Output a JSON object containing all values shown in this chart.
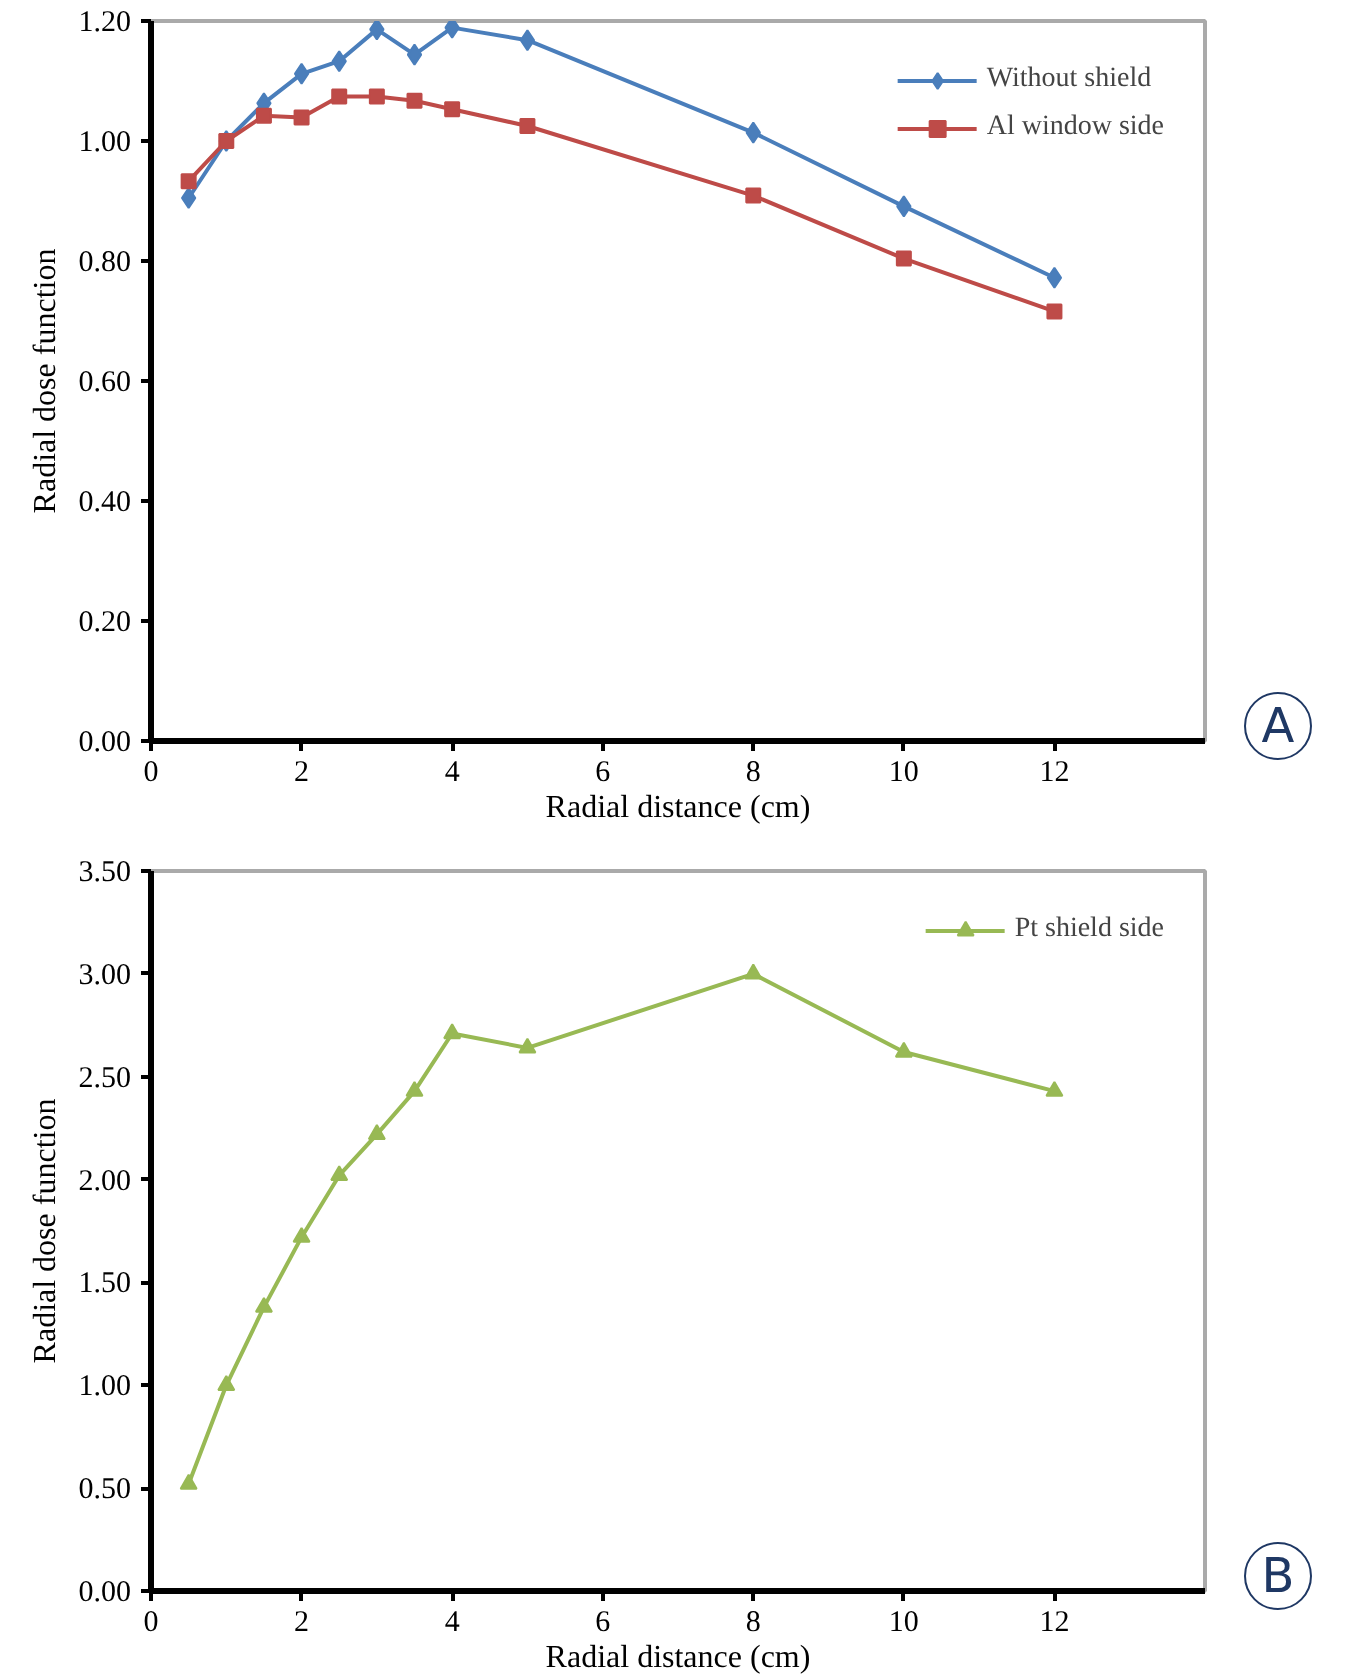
{
  "chart_data": [
    {
      "type": "line",
      "xlabel": "Radial distance (cm)",
      "ylabel": "Radial dose function",
      "annotations": [
        "A"
      ],
      "xlim": [
        0,
        14
      ],
      "xticks": [
        0,
        2,
        4,
        6,
        8,
        10,
        12
      ],
      "ylim": [
        0,
        1.2
      ],
      "yticks": [
        {
          "value": 0,
          "label": "0.00"
        },
        {
          "value": 0.2,
          "label": "0.20"
        },
        {
          "value": 0.4,
          "label": "0.40"
        },
        {
          "value": 0.6,
          "label": "0.60"
        },
        {
          "value": 0.8,
          "label": "0.80"
        },
        {
          "value": 1.0,
          "label": "1.00"
        },
        {
          "value": 1.2,
          "label": "1.20"
        }
      ],
      "x": [
        0.5,
        1,
        1.5,
        2,
        2.5,
        3,
        3.5,
        4,
        5,
        8,
        10,
        12
      ],
      "grid": false,
      "legend": "top right",
      "line_style": "solid",
      "series": [
        {
          "name": "Without shield",
          "color": "#4a7ebb",
          "marker": "diamond",
          "values": [
            0.905,
            1.0,
            1.063,
            1.112,
            1.133,
            1.186,
            1.144,
            1.189,
            1.168,
            1.014,
            0.891,
            0.772
          ]
        },
        {
          "name": "Al window side",
          "color": "#be4b48",
          "marker": "square",
          "values": [
            0.933,
            1.0,
            1.042,
            1.039,
            1.074,
            1.074,
            1.067,
            1.053,
            1.025,
            0.909,
            0.804,
            0.716
          ]
        }
      ]
    },
    {
      "type": "line",
      "xlabel": "Radial distance (cm)",
      "ylabel": "Radial dose function",
      "annotations": [
        "B"
      ],
      "xlim": [
        0,
        14
      ],
      "xticks": [
        0,
        2,
        4,
        6,
        8,
        10,
        12
      ],
      "ylim": [
        0,
        3.5
      ],
      "yticks": [
        {
          "value": 0,
          "label": "0.00"
        },
        {
          "value": 0.5,
          "label": "0.50"
        },
        {
          "value": 1.0,
          "label": "1.00"
        },
        {
          "value": 1.5,
          "label": "1.50"
        },
        {
          "value": 2.0,
          "label": "2.00"
        },
        {
          "value": 2.5,
          "label": "2.50"
        },
        {
          "value": 3.0,
          "label": "3.00"
        },
        {
          "value": 3.5,
          "label": "3.50"
        }
      ],
      "x": [
        0.5,
        1,
        1.5,
        2,
        2.5,
        3,
        3.5,
        4,
        5,
        8,
        10,
        12
      ],
      "grid": false,
      "legend": "top right",
      "line_style": "solid",
      "series": [
        {
          "name": "Pt shield side",
          "color": "#98b954",
          "marker": "triangle",
          "values": [
            0.52,
            1.0,
            1.38,
            1.72,
            2.02,
            2.22,
            2.43,
            2.71,
            2.64,
            3.0,
            2.62,
            2.43
          ]
        }
      ]
    }
  ]
}
